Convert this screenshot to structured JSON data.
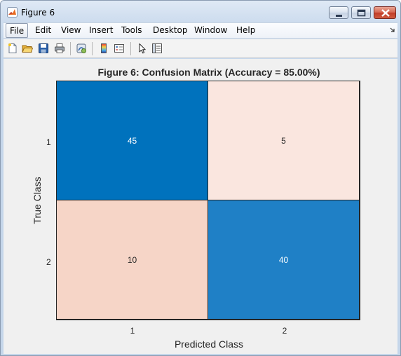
{
  "window": {
    "title": "Figure 6",
    "icon": "matlab-icon"
  },
  "menu": {
    "items": [
      "File",
      "Edit",
      "View",
      "Insert",
      "Tools",
      "Desktop",
      "Window",
      "Help"
    ],
    "active": "File"
  },
  "toolbar": {
    "icons": [
      "new-figure-icon",
      "open-file-icon",
      "save-icon",
      "print-icon",
      "link-plot-icon",
      "colorbar-icon",
      "legend-icon",
      "pointer-icon",
      "property-editor-icon"
    ]
  },
  "colors": {
    "high": "#0072bd",
    "high_alt": "#1f80c6",
    "low": "#fae6df",
    "low_alt": "#f6d5c7"
  },
  "chart_data": {
    "type": "heatmap",
    "title": "Figure 6: Confusion Matrix (Accuracy = 85.00%)",
    "xlabel": "Predicted Class",
    "ylabel": "True Class",
    "x_categories": [
      "1",
      "2"
    ],
    "y_categories": [
      "1",
      "2"
    ],
    "values": [
      [
        45,
        5
      ],
      [
        10,
        40
      ]
    ],
    "cell_labels": [
      [
        "45",
        "5"
      ],
      [
        "10",
        "40"
      ]
    ]
  }
}
